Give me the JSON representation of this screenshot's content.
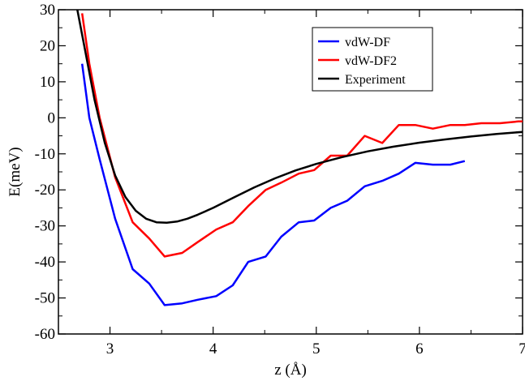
{
  "chart_data": {
    "type": "line",
    "title": "",
    "xlabel": "z (Å)",
    "ylabel": "E(meV)",
    "xlim": [
      2.5,
      7
    ],
    "ylim": [
      -60,
      30
    ],
    "xticks": [
      3,
      4,
      5,
      6,
      7
    ],
    "yticks": [
      -60,
      -50,
      -40,
      -30,
      -20,
      -10,
      0,
      10,
      20,
      30
    ],
    "xtick_labels": [
      "3",
      "4",
      "5",
      "6",
      "7"
    ],
    "ytick_labels": [
      "-60",
      "-50",
      "-40",
      "-30",
      "-20",
      "-10",
      "0",
      "10",
      "20",
      "30"
    ],
    "grid": false,
    "legend_position": "top-right",
    "series": [
      {
        "name": "vdW-DF",
        "color": "#0000ff",
        "x": [
          2.73,
          2.8,
          2.9,
          3.05,
          3.22,
          3.38,
          3.53,
          3.7,
          3.85,
          4.03,
          4.19,
          4.34,
          4.51,
          4.66,
          4.83,
          4.98,
          5.14,
          5.3,
          5.47,
          5.64,
          5.8,
          5.96,
          6.13,
          6.3,
          6.44
        ],
        "y": [
          15,
          0,
          -11.5,
          -28,
          -42,
          -46,
          -52,
          -51.5,
          -50.5,
          -49.5,
          -46.5,
          -40,
          -38.5,
          -33,
          -29,
          -28.5,
          -25,
          -23,
          -19,
          -17.5,
          -15.5,
          -12.5,
          -13,
          -13,
          -12
        ]
      },
      {
        "name": "vdW-DF2",
        "color": "#ff0000",
        "x": [
          2.73,
          2.8,
          2.9,
          3.05,
          3.22,
          3.38,
          3.53,
          3.7,
          3.85,
          4.03,
          4.19,
          4.34,
          4.51,
          4.66,
          4.83,
          4.98,
          5.14,
          5.3,
          5.47,
          5.64,
          5.8,
          5.96,
          6.13,
          6.3,
          6.44,
          6.6,
          6.78,
          6.96,
          7.0
        ],
        "y": [
          29,
          15,
          0,
          -16.5,
          -29,
          -33.5,
          -38.5,
          -37.5,
          -34.5,
          -31,
          -29,
          -24.5,
          -20,
          -18,
          -15.5,
          -14.5,
          -10.5,
          -10.5,
          -5,
          -7,
          -2,
          -2,
          -3,
          -2,
          -2,
          -1.5,
          -1.5,
          -1,
          -1
        ]
      },
      {
        "name": "Experiment",
        "color": "#000000",
        "x": [
          2.67,
          2.75,
          2.85,
          2.95,
          3.05,
          3.15,
          3.25,
          3.35,
          3.45,
          3.55,
          3.65,
          3.75,
          3.85,
          4.0,
          4.2,
          4.4,
          4.6,
          4.8,
          5.0,
          5.25,
          5.5,
          5.75,
          6.0,
          6.25,
          6.5,
          6.75,
          7.0
        ],
        "y": [
          32,
          20,
          5,
          -7,
          -16,
          -22,
          -25.8,
          -28,
          -29.0,
          -29.1,
          -28.8,
          -28.0,
          -26.9,
          -25.0,
          -22.1,
          -19.3,
          -16.8,
          -14.6,
          -12.8,
          -10.9,
          -9.3,
          -8.0,
          -6.9,
          -6.0,
          -5.2,
          -4.5,
          -3.9
        ]
      }
    ]
  }
}
